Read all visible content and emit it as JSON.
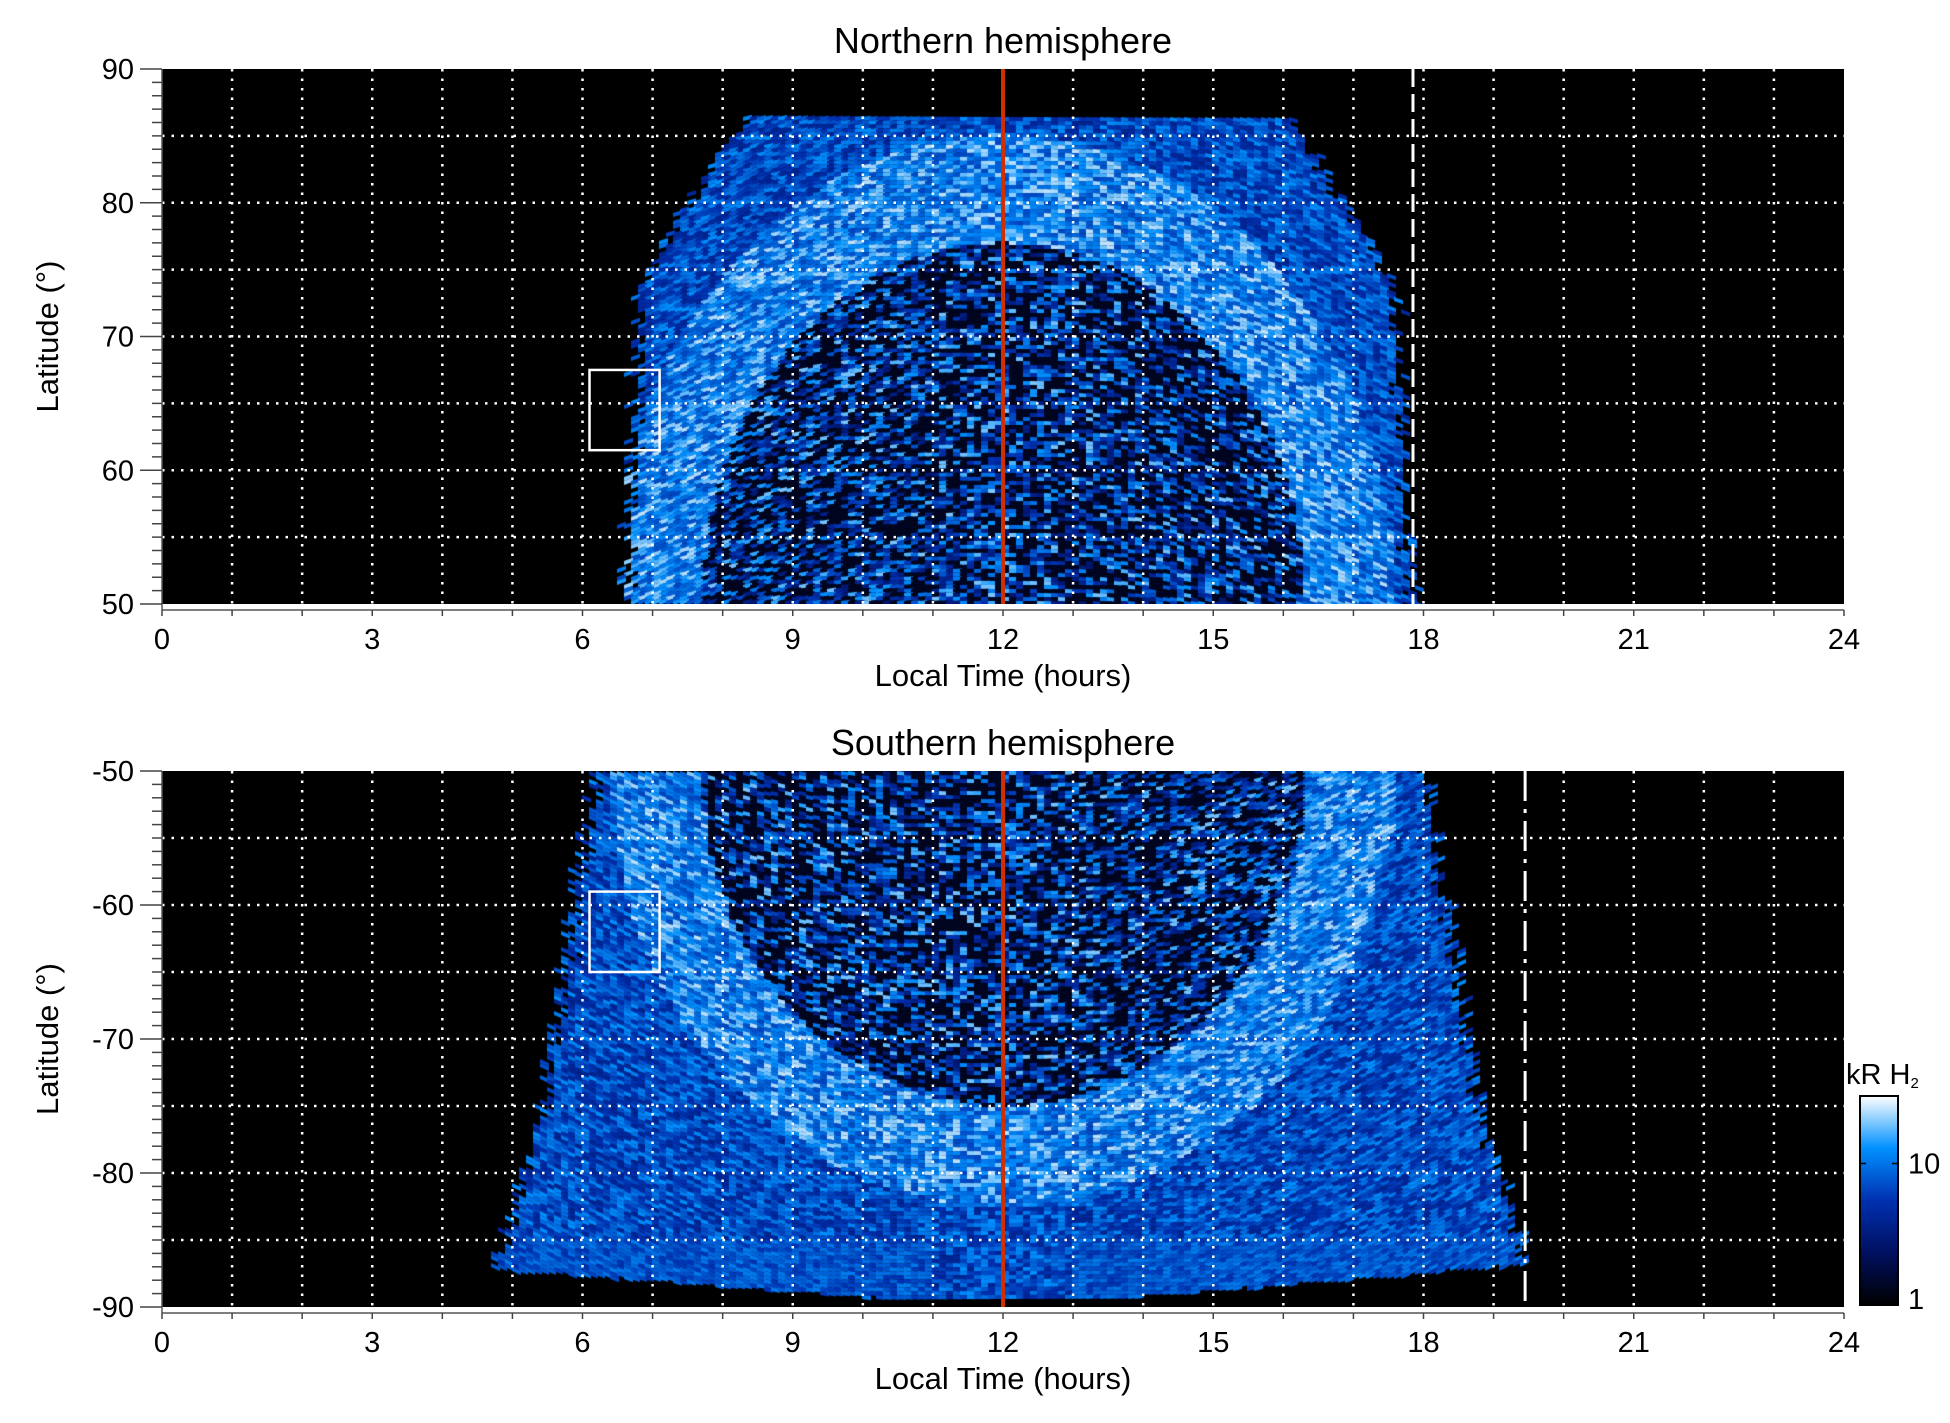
{
  "chart_data": [
    {
      "type": "heatmap",
      "title": "Northern hemisphere",
      "xlabel": "Local Time (hours)",
      "ylabel": "Latitude (°)",
      "xlim": [
        0,
        24
      ],
      "ylim": [
        50,
        90
      ],
      "xticks": [
        0,
        3,
        6,
        9,
        12,
        15,
        18,
        21,
        24
      ],
      "yticks": [
        50,
        60,
        70,
        80,
        90
      ],
      "grid": true,
      "annotations": {
        "noon_line_lt": 12,
        "noon_line_color": "#d03000",
        "dashed_line_lt": 17.85,
        "box": {
          "lt": [
            6.1,
            7.1
          ],
          "lat": [
            61.5,
            67.5
          ]
        }
      },
      "emission_extent": {
        "lt": [
          6.5,
          18.0
        ],
        "lat": [
          50,
          86.5
        ]
      }
    },
    {
      "type": "heatmap",
      "title": "Southern hemisphere",
      "xlabel": "Local Time (hours)",
      "ylabel": "Latitude (°)",
      "xlim": [
        0,
        24
      ],
      "ylim": [
        -90,
        -50
      ],
      "xticks": [
        0,
        3,
        6,
        9,
        12,
        15,
        18,
        21,
        24
      ],
      "yticks": [
        -90,
        -80,
        -70,
        -60,
        -50
      ],
      "grid": true,
      "annotations": {
        "noon_line_lt": 12,
        "noon_line_color": "#d03000",
        "dashed_line_lt": 19.45,
        "box": {
          "lt": [
            6.1,
            7.1
          ],
          "lat": [
            -65,
            -59
          ]
        }
      },
      "emission_extent": {
        "lt": [
          5.0,
          19.8
        ],
        "lat": [
          -89.5,
          -50
        ]
      }
    }
  ],
  "colorbar": {
    "label": "kR H",
    "label_sub": "2",
    "scale": "log",
    "range": [
      1,
      30
    ],
    "ticks": [
      "10",
      "1"
    ],
    "colors": [
      "#000000",
      "#001060",
      "#0030b0",
      "#0090ff",
      "#ffffff"
    ]
  }
}
